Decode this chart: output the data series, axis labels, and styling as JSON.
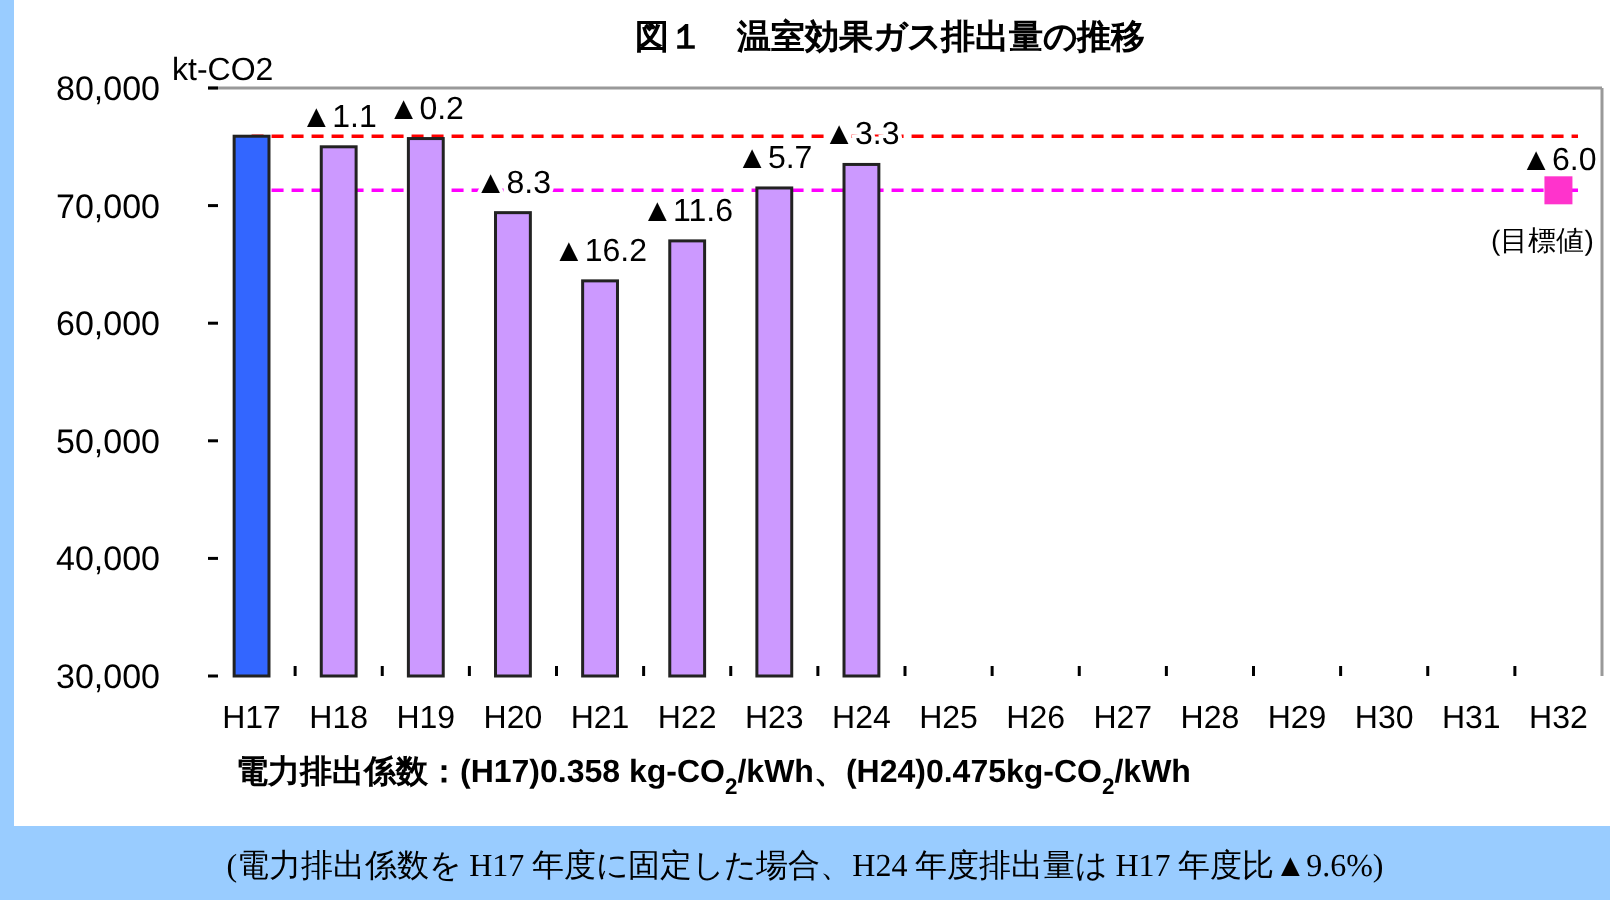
{
  "chart_data": {
    "type": "bar",
    "title": "図１　温室効果ガス排出量の推移",
    "ylabel": "kt-CO2",
    "categories": [
      "H17",
      "H18",
      "H19",
      "H20",
      "H21",
      "H22",
      "H23",
      "H24",
      "H25",
      "H26",
      "H27",
      "H28",
      "H29",
      "H30",
      "H31",
      "H32"
    ],
    "ylim": [
      30000,
      80000
    ],
    "yticks": [
      {
        "value": 30000,
        "label": "30,000"
      },
      {
        "value": 40000,
        "label": "40,000"
      },
      {
        "value": 50000,
        "label": "50,000"
      },
      {
        "value": 60000,
        "label": "60,000"
      },
      {
        "value": 70000,
        "label": "70,000"
      },
      {
        "value": 80000,
        "label": "80,000"
      }
    ],
    "grid": false,
    "series": [
      {
        "type": "bar",
        "values": [
          75900,
          75000,
          75700,
          69400,
          63600,
          67000,
          71500,
          73500,
          null,
          null,
          null,
          null,
          null,
          null,
          null,
          null
        ],
        "colors": [
          "#3366ff",
          "#cc99ff",
          "#cc99ff",
          "#cc99ff",
          "#cc99ff",
          "#cc99ff",
          "#cc99ff",
          "#cc99ff",
          "#cc99ff",
          "#cc99ff",
          "#cc99ff",
          "#cc99ff",
          "#cc99ff",
          "#cc99ff",
          "#cc99ff",
          "#cc99ff"
        ]
      },
      {
        "type": "scatter",
        "marker": "square",
        "color": "#ff33cc",
        "x": [
          "H32"
        ],
        "values": [
          71300
        ]
      }
    ],
    "ref_lines": [
      {
        "axis": "y",
        "value": 75900,
        "color": "#ff0000",
        "line_style": "dashed"
      },
      {
        "axis": "y",
        "value": 71300,
        "color": "#ff00ff",
        "line_style": "dashed"
      }
    ],
    "annotations": [
      {
        "text": "▲1.1",
        "x": "H18",
        "y": 75000
      },
      {
        "text": "▲0.2",
        "x": "H19",
        "y": 75700
      },
      {
        "text": "▲8.3",
        "x": "H20",
        "y": 69400
      },
      {
        "text": "▲16.2",
        "x": "H21",
        "y": 63600
      },
      {
        "text": "▲11.6",
        "x": "H22",
        "y": 67000
      },
      {
        "text": "▲5.7",
        "x": "H23",
        "y": 71500
      },
      {
        "text": "▲3.3",
        "x": "H24",
        "y": 73500
      },
      {
        "text": "▲6.0",
        "x": "H32",
        "y": 71300
      },
      {
        "text": "(目標値)",
        "x": "H32",
        "y": 71300
      },
      "電力排出係数：(H17)0.358 kg-CO$_{2}$/kWh、(H24)0.475kg-CO$_{2}$/kWh",
      "(電力排出係数を H17 年度に固定した場合、H24 年度排出量は H17 年度比▲9.6%)"
    ]
  }
}
